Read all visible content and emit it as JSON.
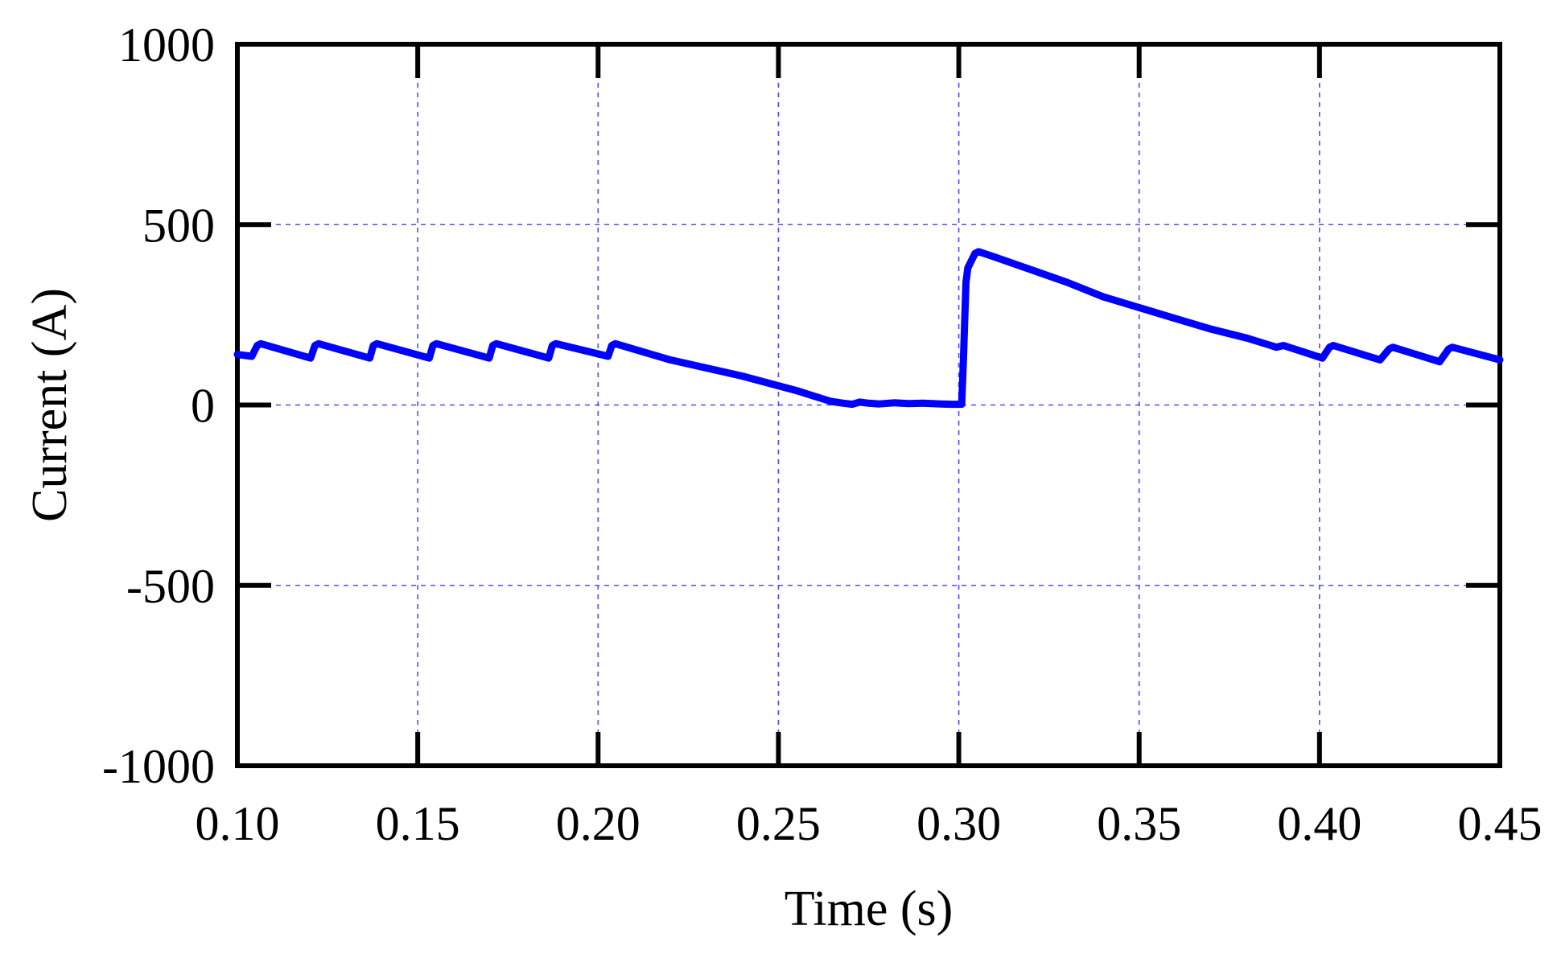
{
  "chart_data": {
    "type": "line",
    "title": "",
    "xlabel": "Time (s)",
    "ylabel": "Current (A)",
    "xlim": [
      0.1,
      0.45
    ],
    "ylim": [
      -1000,
      1000
    ],
    "xticks": [
      "0.10",
      "0.15",
      "0.20",
      "0.25",
      "0.30",
      "0.35",
      "0.40",
      "0.45"
    ],
    "yticks": [
      "1000",
      "500",
      "0",
      "-500",
      "-1000"
    ],
    "xtick_values": [
      0.1,
      0.15,
      0.2,
      0.25,
      0.3,
      0.35,
      0.4,
      0.45
    ],
    "ytick_values": [
      1000,
      500,
      0,
      -500,
      -1000
    ],
    "grid": true,
    "line_color": "#0000ff",
    "grid_color": "#4d4dff",
    "series": [
      {
        "x": [
          0.1,
          0.104,
          0.1055,
          0.1065,
          0.1203,
          0.1215,
          0.1225,
          0.1367,
          0.1377,
          0.1387,
          0.1532,
          0.1542,
          0.1552,
          0.1698,
          0.1708,
          0.1718,
          0.1863,
          0.1873,
          0.1883,
          0.2028,
          0.2038,
          0.2048,
          0.22,
          0.24,
          0.255,
          0.2645,
          0.268,
          0.2705,
          0.2725,
          0.275,
          0.278,
          0.282,
          0.286,
          0.29,
          0.295,
          0.298,
          0.3008,
          0.3013,
          0.302,
          0.3025,
          0.3045,
          0.3055,
          0.31,
          0.32,
          0.33,
          0.34,
          0.35,
          0.36,
          0.37,
          0.38,
          0.3865,
          0.388,
          0.39,
          0.4008,
          0.4028,
          0.4038,
          0.4168,
          0.4193,
          0.4203,
          0.4333,
          0.4358,
          0.4368,
          0.45
        ],
        "y": [
          140,
          135,
          165,
          170,
          130,
          165,
          170,
          130,
          165,
          170,
          130,
          165,
          170,
          130,
          165,
          170,
          130,
          165,
          170,
          135,
          165,
          170,
          125,
          80,
          40,
          10,
          5,
          2,
          8,
          5,
          3,
          6,
          4,
          5,
          3,
          2,
          2,
          130,
          340,
          380,
          420,
          425,
          410,
          375,
          340,
          300,
          270,
          240,
          210,
          185,
          165,
          160,
          165,
          130,
          160,
          165,
          125,
          155,
          160,
          120,
          155,
          160,
          125
        ]
      }
    ]
  }
}
